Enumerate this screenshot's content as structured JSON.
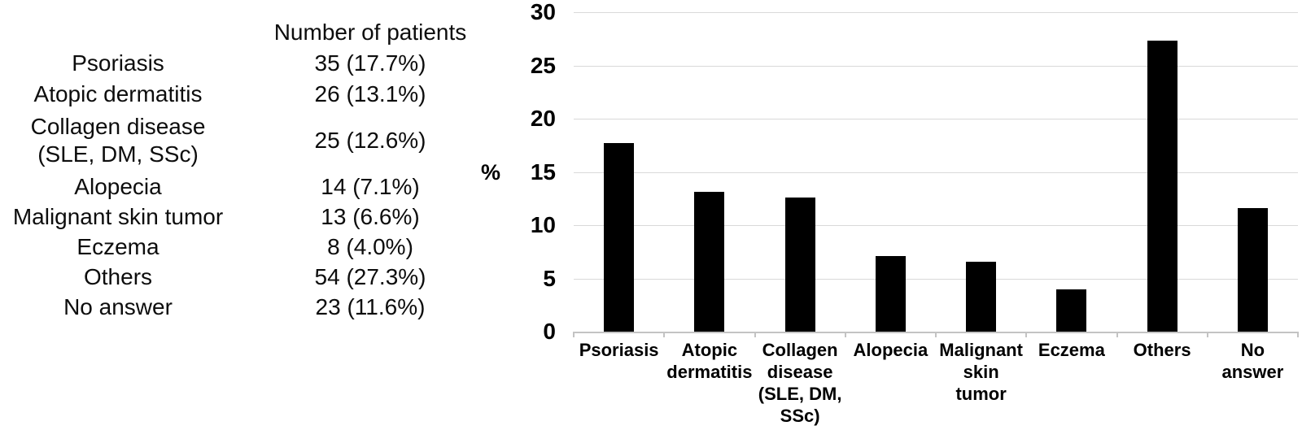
{
  "table": {
    "header": "Number of patients",
    "rows": [
      {
        "label": "Psoriasis",
        "value": "35 (17.7%)"
      },
      {
        "label": "Atopic dermatitis",
        "value": "26 (13.1%)"
      },
      {
        "label": "Collagen disease\n(SLE, DM, SSc)",
        "value": "25 (12.6%)"
      },
      {
        "label": "Alopecia",
        "value": "14 (7.1%)"
      },
      {
        "label": "Malignant skin tumor",
        "value": "13 (6.6%)"
      },
      {
        "label": "Eczema",
        "value": "8 (4.0%)"
      },
      {
        "label": "Others",
        "value": "54 (27.3%)"
      },
      {
        "label": "No answer",
        "value": "23 (11.6%)"
      }
    ]
  },
  "chart_data": {
    "type": "bar",
    "title": "",
    "xlabel": "",
    "ylabel": "%",
    "categories": [
      "Psoriasis",
      "Atopic\ndermatitis",
      "Collagen\ndisease\n(SLE, DM,\nSSc)",
      "Alopecia",
      "Malignant\nskin\ntumor",
      "Eczema",
      "Others",
      "No\nanswer"
    ],
    "values": [
      17.7,
      13.1,
      12.6,
      7.1,
      6.6,
      4.0,
      27.3,
      11.6
    ],
    "ylim": [
      0,
      30
    ],
    "yticks": [
      0,
      5,
      10,
      15,
      20,
      25,
      30
    ],
    "grid": true,
    "legend": "none",
    "bar_color": "#000000",
    "gridline_color": "#d9d9d9",
    "axis_color": "#c3c3c3"
  }
}
